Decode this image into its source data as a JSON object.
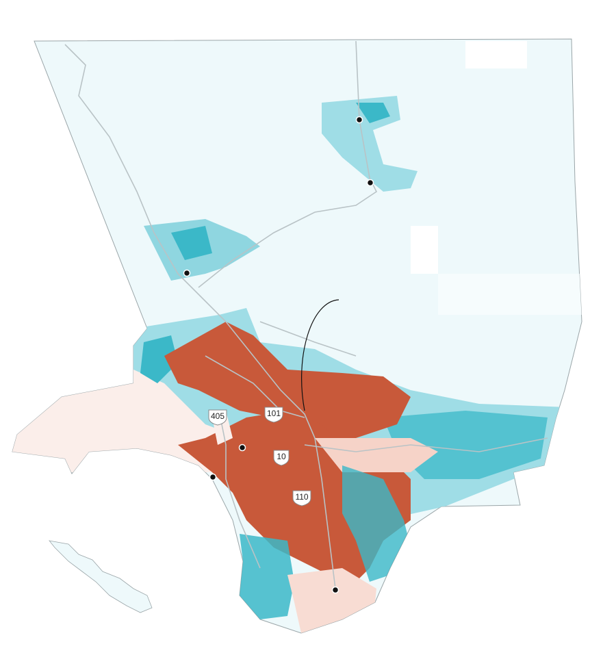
{
  "highway_shields": [
    {
      "label": "405"
    },
    {
      "label": "101"
    },
    {
      "label": "10"
    },
    {
      "label": "110"
    }
  ]
}
